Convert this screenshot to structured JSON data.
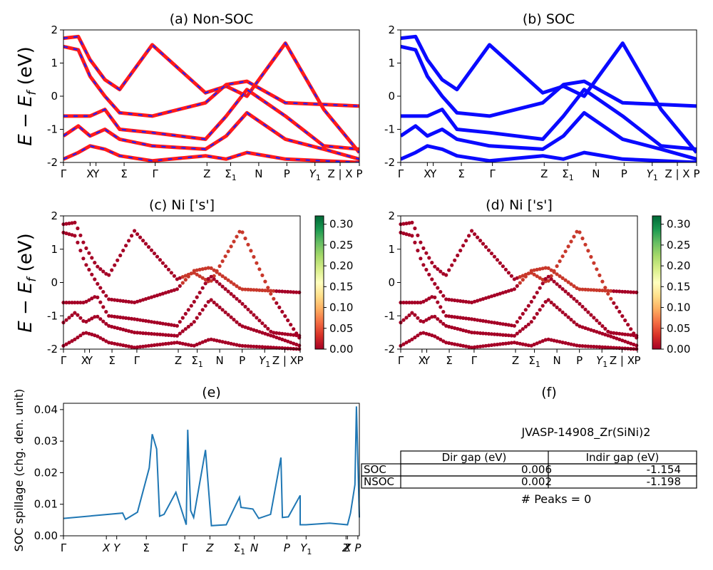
{
  "figure": {
    "ylabel_energy": "E − E",
    "ylabel_energy_sub": "f",
    "ylabel_energy_unit": " (eV)"
  },
  "chart_data": [
    {
      "id": "a",
      "type": "line",
      "title": "(a) Non-SOC",
      "ylim": [
        -2,
        2
      ],
      "yticks": [
        2,
        1,
        0,
        -1,
        -2
      ],
      "kpath": [
        "Γ",
        "X",
        "Y",
        "Σ",
        "Γ",
        "Z",
        "Σ1",
        "N",
        "P",
        "Y1",
        "Z | X",
        "P"
      ],
      "style": "red solid with blue dashed overlay",
      "series": [
        {
          "x": [
            0,
            0.05,
            0.09,
            0.14,
            0.19,
            0.3,
            0.48,
            0.55,
            0.62,
            0.75,
            0.88,
            1.0
          ],
          "y": [
            1.75,
            1.8,
            1.1,
            0.5,
            0.2,
            1.55,
            0.1,
            0.3,
            0.0,
            1.6,
            -0.4,
            -1.7
          ]
        },
        {
          "x": [
            0,
            0.05,
            0.09,
            0.14,
            0.19,
            0.3,
            0.48,
            0.55,
            0.62,
            0.75,
            0.88,
            1.0
          ],
          "y": [
            1.5,
            1.4,
            0.6,
            0.0,
            -0.5,
            -0.6,
            -0.2,
            0.35,
            0.45,
            -0.2,
            -0.25,
            -0.3
          ]
        },
        {
          "x": [
            0,
            0.05,
            0.09,
            0.14,
            0.19,
            0.3,
            0.48,
            0.55,
            0.62,
            0.75,
            0.88,
            1.0
          ],
          "y": [
            -0.6,
            -0.6,
            -0.6,
            -0.4,
            -1.0,
            -1.1,
            -1.3,
            -0.6,
            0.2,
            -0.6,
            -1.5,
            -1.6
          ]
        },
        {
          "x": [
            0,
            0.05,
            0.09,
            0.14,
            0.19,
            0.3,
            0.48,
            0.55,
            0.62,
            0.75,
            0.88,
            1.0
          ],
          "y": [
            -1.2,
            -0.9,
            -1.2,
            -1.0,
            -1.3,
            -1.5,
            -1.6,
            -1.2,
            -0.5,
            -1.3,
            -1.6,
            -1.9
          ]
        },
        {
          "x": [
            0,
            0.05,
            0.09,
            0.14,
            0.19,
            0.3,
            0.48,
            0.55,
            0.62,
            0.75,
            0.88,
            1.0
          ],
          "y": [
            -1.9,
            -1.7,
            -1.5,
            -1.6,
            -1.8,
            -1.95,
            -1.8,
            -1.9,
            -1.7,
            -1.9,
            -1.95,
            -2.0
          ]
        }
      ]
    },
    {
      "id": "b",
      "type": "line",
      "title": "(b) SOC",
      "ylim": [
        -2,
        2
      ],
      "yticks": [
        2,
        1,
        0,
        -1,
        -2
      ],
      "kpath": [
        "Γ",
        "X",
        "Y",
        "Σ",
        "Γ",
        "Z",
        "Σ1",
        "N",
        "P",
        "Y1",
        "Z | X",
        "P"
      ],
      "style": "blue solid",
      "series": [
        {
          "x": [
            0,
            0.05,
            0.09,
            0.14,
            0.19,
            0.3,
            0.48,
            0.55,
            0.62,
            0.75,
            0.88,
            1.0
          ],
          "y": [
            1.75,
            1.8,
            1.1,
            0.5,
            0.2,
            1.55,
            0.1,
            0.3,
            0.0,
            1.6,
            -0.4,
            -1.7
          ]
        },
        {
          "x": [
            0,
            0.05,
            0.09,
            0.14,
            0.19,
            0.3,
            0.48,
            0.55,
            0.62,
            0.75,
            0.88,
            1.0
          ],
          "y": [
            1.5,
            1.4,
            0.6,
            0.0,
            -0.5,
            -0.6,
            -0.2,
            0.35,
            0.45,
            -0.2,
            -0.25,
            -0.3
          ]
        },
        {
          "x": [
            0,
            0.05,
            0.09,
            0.14,
            0.19,
            0.3,
            0.48,
            0.55,
            0.62,
            0.75,
            0.88,
            1.0
          ],
          "y": [
            -0.6,
            -0.6,
            -0.6,
            -0.4,
            -1.0,
            -1.1,
            -1.3,
            -0.6,
            0.2,
            -0.6,
            -1.5,
            -1.6
          ]
        },
        {
          "x": [
            0,
            0.05,
            0.09,
            0.14,
            0.19,
            0.3,
            0.48,
            0.55,
            0.62,
            0.75,
            0.88,
            1.0
          ],
          "y": [
            -1.2,
            -0.9,
            -1.2,
            -1.0,
            -1.3,
            -1.5,
            -1.6,
            -1.2,
            -0.5,
            -1.3,
            -1.6,
            -1.9
          ]
        },
        {
          "x": [
            0,
            0.05,
            0.09,
            0.14,
            0.19,
            0.3,
            0.48,
            0.55,
            0.62,
            0.75,
            0.88,
            1.0
          ],
          "y": [
            -1.9,
            -1.7,
            -1.5,
            -1.6,
            -1.8,
            -1.95,
            -1.8,
            -1.9,
            -1.7,
            -1.9,
            -1.95,
            -2.0
          ]
        }
      ]
    },
    {
      "id": "c",
      "type": "scatter",
      "title": "(c)  Ni ['s']",
      "ylim": [
        -2,
        2
      ],
      "yticks": [
        2,
        1,
        0,
        -1,
        -2
      ],
      "kpath": [
        "Γ",
        "X",
        "Y",
        "Σ",
        "Γ",
        "Z",
        "Σ1",
        "N",
        "P",
        "Y1",
        "Z | X",
        "P"
      ],
      "colorbar": {
        "ticks": [
          "0.30",
          "0.25",
          "0.20",
          "0.15",
          "0.10",
          "0.05",
          "0.00"
        ],
        "range": [
          0,
          0.32
        ],
        "cmap": "RdYlGn"
      }
    },
    {
      "id": "d",
      "type": "scatter",
      "title": "(d) Ni ['s']",
      "ylim": [
        -2,
        2
      ],
      "yticks": [
        2,
        1,
        0,
        -1,
        -2
      ],
      "kpath": [
        "Γ",
        "X",
        "Y",
        "Σ",
        "Γ",
        "Z",
        "Σ1",
        "N",
        "P",
        "Y1",
        "Z | X",
        "P"
      ],
      "colorbar": {
        "ticks": [
          "0.30",
          "0.25",
          "0.20",
          "0.15",
          "0.10",
          "0.05",
          "0.00"
        ],
        "range": [
          0,
          0.32
        ],
        "cmap": "RdYlGn"
      }
    },
    {
      "id": "e",
      "type": "line",
      "title": "(e)",
      "ylabel": "SOC spillage (chg. den. unit)",
      "ylim": [
        0,
        0.042
      ],
      "yticks": [
        "0.04",
        "0.03",
        "0.02",
        "0.01",
        "0.00"
      ],
      "kpath": [
        "Γ",
        "X",
        "Y",
        "Σ",
        "Γ",
        "Z",
        "Σ1",
        "N",
        "P",
        "Y1",
        "Z",
        "X",
        "P"
      ],
      "x": [
        0,
        0.2,
        0.21,
        0.25,
        0.29,
        0.3,
        0.315,
        0.325,
        0.34,
        0.38,
        0.415,
        0.42,
        0.43,
        0.44,
        0.48,
        0.5,
        0.55,
        0.595,
        0.6,
        0.64,
        0.66,
        0.7,
        0.735,
        0.74,
        0.76,
        0.8,
        0.8,
        0.82,
        0.9,
        0.96,
        0.97,
        0.985,
        0.99,
        1.0
      ],
      "values": [
        0.0055,
        0.0072,
        0.0052,
        0.0075,
        0.0215,
        0.0322,
        0.0275,
        0.0062,
        0.0068,
        0.0138,
        0.0035,
        0.0336,
        0.008,
        0.0058,
        0.0272,
        0.0032,
        0.0035,
        0.0122,
        0.009,
        0.0085,
        0.0055,
        0.0068,
        0.0248,
        0.0058,
        0.006,
        0.0128,
        0.0035,
        0.0035,
        0.004,
        0.0035,
        0.0072,
        0.0162,
        0.041,
        0.0058
      ]
    },
    {
      "id": "f",
      "type": "table",
      "title": "(f)",
      "caption": "JVASP-14908_Zr(SiNi)2",
      "columns": [
        "",
        "Dir gap (eV)",
        "Indir gap (eV)"
      ],
      "rows": [
        [
          "SOC",
          "0.006",
          "-1.154"
        ],
        [
          "NSOC",
          "0.002",
          "-1.198"
        ]
      ],
      "footer": "# Peaks = 0"
    }
  ]
}
